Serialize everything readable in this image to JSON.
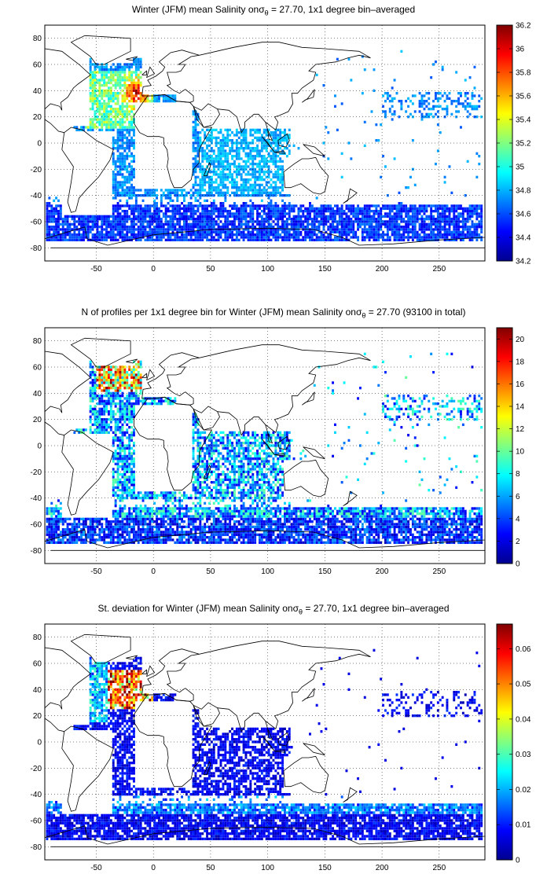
{
  "figure": {
    "panels": [
      {
        "title_pre": "Winter (JFM) mean Salinity on",
        "title_sym": "σ",
        "title_sub": "θ",
        "title_post": " = 27.70, 1x1 degree bin–averaged",
        "colorbar": {
          "ticks": [
            "34.2",
            "34.4",
            "34.6",
            "34.8",
            "35",
            "35.2",
            "35.4",
            "35.6",
            "35.8",
            "36",
            "36.2"
          ],
          "min": 34.2,
          "max": 36.2
        }
      },
      {
        "title_pre": "N of profiles per 1x1 degree bin for Winter (JFM) mean Salinity on",
        "title_sym": "σ",
        "title_sub": "θ",
        "title_post": " = 27.70 (93100 in total)",
        "colorbar": {
          "ticks": [
            "0",
            "2",
            "4",
            "6",
            "8",
            "10",
            "12",
            "14",
            "16",
            "18",
            "20"
          ],
          "min": 0,
          "max": 21
        }
      },
      {
        "title_pre": "St. deviation for Winter (JFM) mean Salinity on",
        "title_sym": "σ",
        "title_sub": "θ",
        "title_post": " = 27.70, 1x1 degree bin–averaged",
        "colorbar": {
          "ticks": [
            "0",
            "0.01",
            "0.02",
            "0.03",
            "0.04",
            "0.05",
            "0.06"
          ],
          "min": 0,
          "max": 0.067
        }
      }
    ],
    "x_ticks": [
      "-50",
      "0",
      "50",
      "100",
      "150",
      "200",
      "250"
    ],
    "y_ticks": [
      "80",
      "60",
      "40",
      "20",
      "0",
      "-20",
      "-40",
      "-60",
      "-80"
    ],
    "x_range": [
      -95,
      290
    ],
    "y_range": [
      -90,
      90
    ],
    "colormap": "jet",
    "colormap_stops": [
      "#00008f",
      "#0000ff",
      "#0080ff",
      "#00ffff",
      "#80ff80",
      "#ffff00",
      "#ff8000",
      "#ff0000",
      "#800000"
    ],
    "grid": "dotted"
  }
}
